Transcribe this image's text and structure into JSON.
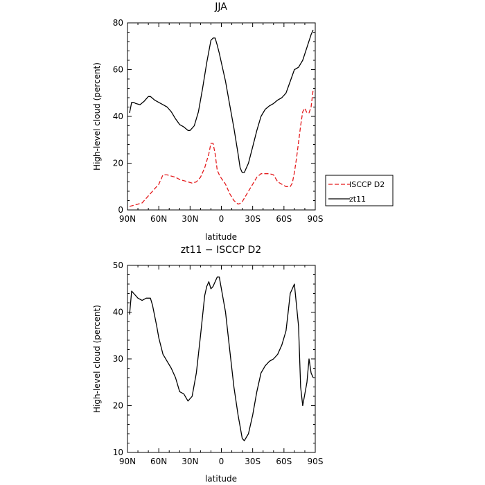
{
  "chart_data": [
    {
      "type": "line",
      "title": "JJA",
      "xlabel": "latitude",
      "ylabel": "High-level cloud (percent)",
      "xlim": [
        90,
        -90
      ],
      "ylim": [
        0,
        80
      ],
      "xticks": [
        90,
        60,
        30,
        0,
        -30,
        -60,
        -90
      ],
      "xtick_labels": [
        "90N",
        "60N",
        "30N",
        "0",
        "30S",
        "60S",
        "90S"
      ],
      "yticks": [
        0,
        20,
        40,
        60,
        80
      ],
      "legend": "right",
      "series": [
        {
          "name": "ISCCP D2",
          "color": "#e41a1c",
          "dash": "dashed",
          "x": [
            88,
            84,
            80,
            76,
            72,
            68,
            64,
            60,
            56,
            52,
            48,
            44,
            40,
            36,
            32,
            28,
            24,
            20,
            16,
            12,
            10,
            8,
            6,
            4,
            2,
            0,
            -4,
            -8,
            -12,
            -16,
            -18,
            -20,
            -22,
            -26,
            -30,
            -34,
            -38,
            -42,
            -46,
            -50,
            -54,
            -58,
            -62,
            -66,
            -68,
            -70,
            -72,
            -74,
            -76,
            -78,
            -80,
            -82,
            -84,
            -86,
            -88
          ],
          "values": [
            1.5,
            2,
            2.5,
            3,
            5,
            7,
            9,
            11,
            15,
            15,
            14.5,
            14,
            13,
            12.5,
            12,
            11.5,
            12,
            14,
            18,
            24,
            28.5,
            28.5,
            24,
            17,
            15,
            13.5,
            11,
            7,
            4,
            2.5,
            2.8,
            3.5,
            5,
            8,
            11,
            14,
            15.5,
            15.5,
            15.5,
            15,
            12,
            11,
            10,
            10,
            11.5,
            16,
            22,
            29,
            36,
            42,
            43.5,
            41.5,
            41.5,
            44,
            51.5
          ]
        },
        {
          "name": "zt11",
          "color": "#000000",
          "dash": "solid",
          "x": [
            88,
            86,
            84,
            82,
            78,
            74,
            70,
            68,
            64,
            60,
            56,
            52,
            48,
            44,
            40,
            36,
            32,
            30,
            26,
            22,
            18,
            14,
            10,
            8,
            6,
            4,
            2,
            0,
            -4,
            -8,
            -12,
            -16,
            -18,
            -20,
            -22,
            -26,
            -30,
            -34,
            -38,
            -42,
            -46,
            -50,
            -54,
            -58,
            -62,
            -66,
            -70,
            -74,
            -78,
            -82,
            -86,
            -88
          ],
          "values": [
            41.5,
            46,
            46,
            45.5,
            45,
            46.5,
            48.5,
            48.5,
            47,
            46,
            45,
            44,
            42,
            39,
            36.5,
            35.5,
            34,
            34,
            36,
            42,
            52,
            63,
            72.5,
            73.5,
            73.5,
            70.5,
            67,
            63,
            55,
            45,
            35,
            24,
            18,
            16,
            16,
            20,
            27,
            34,
            40,
            43,
            44.5,
            45.5,
            47,
            48,
            50,
            55,
            60,
            61,
            64,
            69.5,
            75,
            77
          ]
        }
      ]
    },
    {
      "type": "line",
      "title": "zt11 − ISCCP D2",
      "xlabel": "latitude",
      "ylabel": "High-level cloud (percent)",
      "xlim": [
        90,
        -90
      ],
      "ylim": [
        10,
        50
      ],
      "xticks": [
        90,
        60,
        30,
        0,
        -30,
        -60,
        -90
      ],
      "xtick_labels": [
        "90N",
        "60N",
        "30N",
        "0",
        "30S",
        "60S",
        "90S"
      ],
      "yticks": [
        10,
        20,
        30,
        40,
        50
      ],
      "series": [
        {
          "color": "#000000",
          "dash": "solid",
          "x": [
            88,
            86,
            84,
            80,
            76,
            72,
            68,
            66,
            62,
            60,
            56,
            52,
            48,
            44,
            40,
            36,
            32,
            28,
            24,
            20,
            16,
            14,
            12,
            10,
            8,
            4,
            2,
            0,
            -4,
            -8,
            -12,
            -16,
            -20,
            -22,
            -26,
            -30,
            -34,
            -38,
            -42,
            -46,
            -50,
            -54,
            -58,
            -62,
            -64,
            -66,
            -70,
            -74,
            -76,
            -78,
            -82,
            -84,
            -86,
            -88
          ],
          "values": [
            39.5,
            44.5,
            44,
            43,
            42.5,
            43,
            43,
            41.5,
            37,
            34.5,
            31,
            29.5,
            28,
            26,
            23,
            22.5,
            21,
            22,
            27,
            35,
            43.5,
            45.5,
            46.5,
            45,
            45.5,
            47.5,
            47.5,
            45,
            40,
            32,
            24,
            18,
            13,
            12.5,
            14,
            18,
            23,
            27,
            28.5,
            29.5,
            30,
            31,
            33,
            36,
            40,
            44,
            46,
            37,
            24,
            20,
            25,
            30,
            27,
            26
          ]
        }
      ]
    }
  ]
}
